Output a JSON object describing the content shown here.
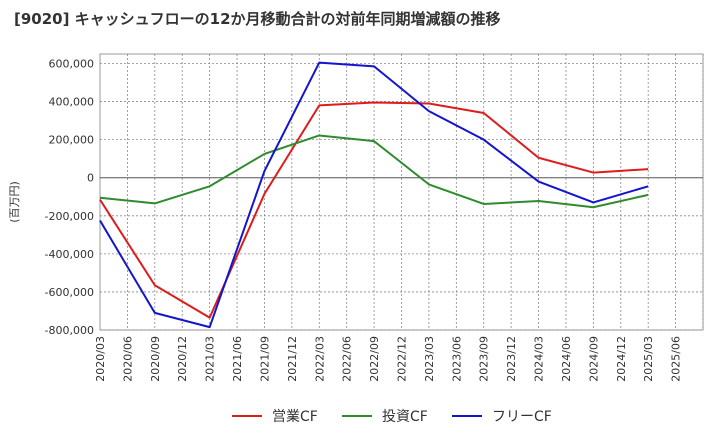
{
  "chart_data": {
    "type": "line",
    "title": "[9020]  キャッシュフローの12か月移動合計の対前年同期増減額の推移",
    "ylabel": "(百万円)",
    "xlabel": "",
    "x": [
      "2020/03",
      "2020/06",
      "2020/09",
      "2020/12",
      "2021/03",
      "2021/06",
      "2021/09",
      "2021/12",
      "2022/03",
      "2022/06",
      "2022/09",
      "2022/12",
      "2023/03",
      "2023/06",
      "2023/09",
      "2023/12",
      "2024/03",
      "2024/06",
      "2024/09",
      "2024/12",
      "2025/03",
      "2025/06"
    ],
    "yticks": [
      "600,000",
      "400,000",
      "200,000",
      "0",
      "-200,000",
      "-400,000",
      "-600,000",
      "-800,000"
    ],
    "ytick_values": [
      600000,
      400000,
      200000,
      0,
      -200000,
      -400000,
      -600000,
      -800000
    ],
    "ylim": [
      -800000,
      650000
    ],
    "grid": true,
    "legend_position": "bottom",
    "series": [
      {
        "name": "営業CF",
        "color": "#dd1c1c",
        "x": [
          "2020/03",
          "2020/09",
          "2021/03",
          "2021/09",
          "2022/03",
          "2022/09",
          "2023/03",
          "2023/09",
          "2024/03",
          "2024/09",
          "2025/03"
        ],
        "values": [
          -115000,
          -565000,
          -735000,
          -85000,
          380000,
          395000,
          390000,
          340000,
          105000,
          27000,
          45000
        ]
      },
      {
        "name": "投資CF",
        "color": "#2e8b2e",
        "x": [
          "2020/03",
          "2020/09",
          "2021/03",
          "2021/09",
          "2022/03",
          "2022/09",
          "2023/03",
          "2023/09",
          "2024/03",
          "2024/09",
          "2025/03"
        ],
        "values": [
          -105000,
          -135000,
          -45000,
          125000,
          222000,
          192000,
          -35000,
          -138000,
          -122000,
          -155000,
          -90000
        ]
      },
      {
        "name": "フリーCF",
        "color": "#1414cc",
        "x": [
          "2020/03",
          "2020/09",
          "2021/03",
          "2021/09",
          "2022/03",
          "2022/09",
          "2023/03",
          "2023/09",
          "2024/03",
          "2024/09",
          "2025/03"
        ],
        "values": [
          -225000,
          -710000,
          -785000,
          35000,
          605000,
          585000,
          350000,
          200000,
          -20000,
          -130000,
          -45000
        ]
      }
    ]
  }
}
